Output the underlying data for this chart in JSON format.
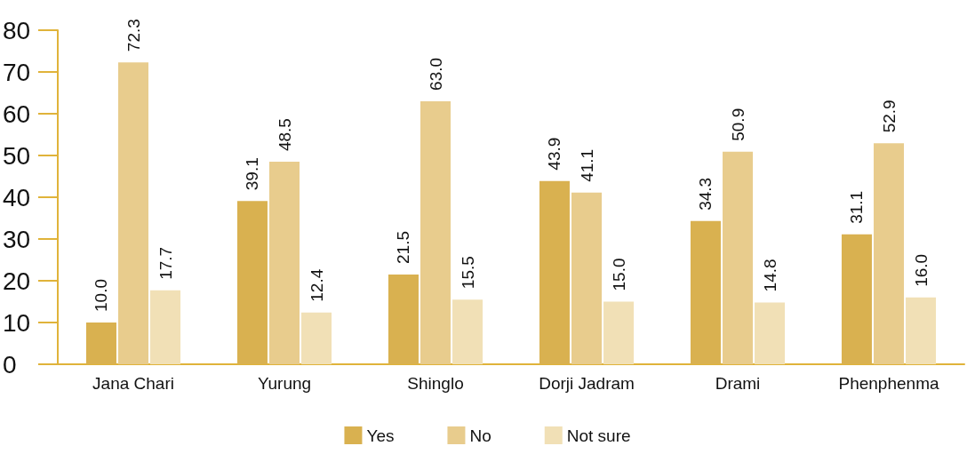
{
  "chart_data": {
    "type": "bar",
    "categories": [
      "Jana Chari",
      "Yurung",
      "Shinglo",
      "Dorji Jadram",
      "Drami",
      "Phenphenma"
    ],
    "series": [
      {
        "name": "Yes",
        "color": "#d9b150",
        "values": [
          10.0,
          39.1,
          21.5,
          43.9,
          34.3,
          31.1
        ],
        "value_labels": [
          "10.0",
          "39.1",
          "21.5",
          "43.9",
          "34.3",
          "31.1"
        ]
      },
      {
        "name": "No",
        "color": "#e8cc8d",
        "values": [
          72.3,
          48.5,
          63.0,
          41.1,
          50.9,
          52.9
        ],
        "value_labels": [
          "72.3",
          "48.5",
          "63.0",
          "41.1",
          "50.9",
          "52.9"
        ]
      },
      {
        "name": "Not sure",
        "color": "#f1e0b6",
        "values": [
          17.7,
          12.4,
          15.5,
          15.0,
          14.8,
          16.0
        ],
        "value_labels": [
          "17.7",
          "12.4",
          "15.5",
          "15.0",
          "14.8",
          "16.0"
        ]
      }
    ],
    "ylim": [
      0,
      80
    ],
    "yticks": [
      0,
      10,
      20,
      30,
      40,
      50,
      60,
      70,
      80
    ],
    "grid": false,
    "legend": "bottom"
  }
}
